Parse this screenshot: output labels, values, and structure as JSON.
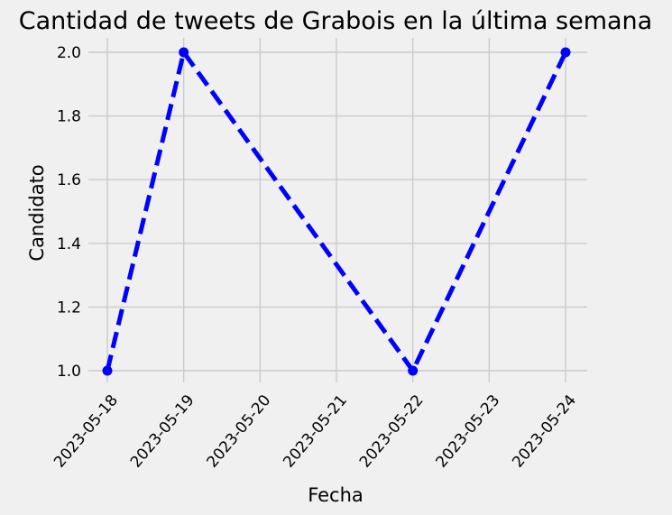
{
  "chart_data": {
    "type": "line",
    "title": "Cantidad de tweets de Grabois en la última semana",
    "xlabel": "Fecha",
    "ylabel": "Candidato",
    "x_ticks": [
      "2023-05-18",
      "2023-05-19",
      "2023-05-20",
      "2023-05-21",
      "2023-05-22",
      "2023-05-23",
      "2023-05-24"
    ],
    "y_ticks": [
      "1.0",
      "1.2",
      "1.4",
      "1.6",
      "1.8",
      "2.0"
    ],
    "xlim": [
      "2023-05-18",
      "2023-05-24"
    ],
    "ylim": [
      1.0,
      2.0
    ],
    "grid": true,
    "series": [
      {
        "x": [
          "2023-05-18",
          "2023-05-19",
          "2023-05-22",
          "2023-05-24"
        ],
        "values": [
          1,
          2,
          1,
          2
        ],
        "color": "#0000ff",
        "line_style": "dashed",
        "marker": "circle"
      }
    ]
  }
}
